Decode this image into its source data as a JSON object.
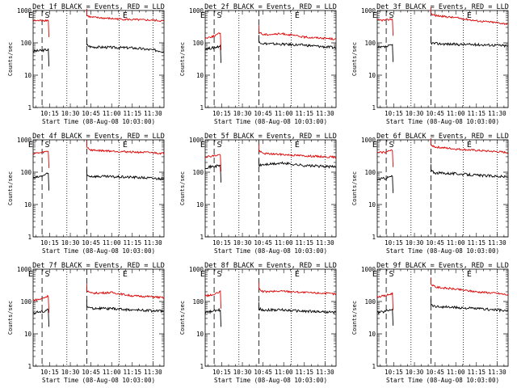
{
  "colors": {
    "events": "#000000",
    "lld": "#dd0000",
    "axes": "#000000",
    "background": "#ffffff"
  },
  "figure": {
    "ylabel": "Counts/sec",
    "xlabel": "Start Time (08-Aug-08 10:03:00)"
  },
  "chart_data": [
    {
      "type": "line",
      "title": "Det 1f BLACK = Events, RED = LLD",
      "xlabel": "Start Time (08-Aug-08 10:03:00)",
      "ylabel": "Counts/sec",
      "yscale": "log",
      "ylim": [
        1,
        1000
      ],
      "ytick_labels": [
        "1",
        "10",
        "100",
        "1000"
      ],
      "xtick_labels": [
        "10:15",
        "10:30",
        "10:45",
        "11:00",
        "11:15",
        "11:30"
      ],
      "markers": [
        "E",
        "S",
        "E"
      ],
      "series": [
        {
          "name": "Events",
          "color": "#000000",
          "segments": [
            {
              "x": [
                "10:03",
                "10:09",
                "10:14"
              ],
              "values": [
                55,
                58,
                62
              ]
            },
            {
              "x": [
                "10:42",
                "10:45",
                "11:00",
                "11:15",
                "11:30",
                "11:38"
              ],
              "values": [
                85,
                75,
                72,
                70,
                60,
                55
              ]
            }
          ]
        },
        {
          "name": "LLD",
          "color": "#dd0000",
          "segments": [
            {
              "x": [
                "10:03",
                "10:09",
                "10:14"
              ],
              "values": [
                480,
                490,
                500
              ]
            },
            {
              "x": [
                "10:42",
                "10:45",
                "11:00",
                "11:15",
                "11:30",
                "11:38"
              ],
              "values": [
                700,
                620,
                560,
                520,
                500,
                470
              ]
            }
          ]
        }
      ]
    },
    {
      "type": "line",
      "title": "Det 2f BLACK = Events, RED = LLD",
      "xlabel": "Start Time (08-Aug-08 10:03:00)",
      "ylabel": "Counts/sec",
      "yscale": "log",
      "ylim": [
        1,
        1000
      ],
      "ytick_labels": [
        "1",
        "10",
        "100",
        "1000"
      ],
      "xtick_labels": [
        "10:15",
        "10:30",
        "10:45",
        "11:00",
        "11:15",
        "11:30"
      ],
      "markers": [
        "E",
        "S",
        "E"
      ],
      "series": [
        {
          "name": "Events",
          "color": "#000000",
          "segments": [
            {
              "x": [
                "10:03",
                "10:09",
                "10:14"
              ],
              "values": [
                65,
                70,
                80
              ]
            },
            {
              "x": [
                "10:42",
                "10:45",
                "11:00",
                "11:15",
                "11:30",
                "11:38"
              ],
              "values": [
                110,
                95,
                90,
                85,
                75,
                70
              ]
            }
          ]
        },
        {
          "name": "LLD",
          "color": "#dd0000",
          "segments": [
            {
              "x": [
                "10:03",
                "10:09",
                "10:14"
              ],
              "values": [
                140,
                160,
                200
              ]
            },
            {
              "x": [
                "10:42",
                "10:45",
                "11:00",
                "11:15",
                "11:30",
                "11:38"
              ],
              "values": [
                220,
                180,
                190,
                150,
                140,
                130
              ]
            }
          ]
        }
      ]
    },
    {
      "type": "line",
      "title": "Det 3f BLACK = Events, RED = LLD",
      "xlabel": "Start Time (08-Aug-08 10:03:00)",
      "ylabel": "Counts/sec",
      "yscale": "log",
      "ylim": [
        1,
        1000
      ],
      "ytick_labels": [
        "1",
        "10",
        "100",
        "1000"
      ],
      "xtick_labels": [
        "10:15",
        "10:30",
        "10:45",
        "11:00",
        "11:15",
        "11:30"
      ],
      "markers": [
        "E",
        "S",
        "E"
      ],
      "series": [
        {
          "name": "Events",
          "color": "#000000",
          "segments": [
            {
              "x": [
                "10:03",
                "10:09",
                "10:14"
              ],
              "values": [
                70,
                75,
                85
              ]
            },
            {
              "x": [
                "10:42",
                "10:45",
                "11:00",
                "11:15",
                "11:30",
                "11:38"
              ],
              "values": [
                100,
                95,
                90,
                88,
                85,
                80
              ]
            }
          ]
        },
        {
          "name": "LLD",
          "color": "#dd0000",
          "segments": [
            {
              "x": [
                "10:03",
                "10:09",
                "10:14"
              ],
              "values": [
                500,
                500,
                550
              ]
            },
            {
              "x": [
                "10:42",
                "10:45",
                "11:00",
                "11:15",
                "11:30",
                "11:38"
              ],
              "values": [
                800,
                700,
                600,
                480,
                420,
                380
              ]
            }
          ]
        }
      ]
    },
    {
      "type": "line",
      "title": "Det 4f BLACK = Events, RED = LLD",
      "xlabel": "Start Time (08-Aug-08 10:03:00)",
      "ylabel": "Counts/sec",
      "yscale": "log",
      "ylim": [
        1,
        1000
      ],
      "ytick_labels": [
        "1",
        "10",
        "100",
        "1000"
      ],
      "xtick_labels": [
        "10:15",
        "10:30",
        "10:45",
        "11:00",
        "11:15",
        "11:30"
      ],
      "markers": [
        "E",
        "S",
        "E"
      ],
      "series": [
        {
          "name": "Events",
          "color": "#000000",
          "segments": [
            {
              "x": [
                "10:03",
                "10:09",
                "10:14"
              ],
              "values": [
                65,
                75,
                90
              ]
            },
            {
              "x": [
                "10:42",
                "10:45",
                "11:00",
                "11:15",
                "11:30",
                "11:38"
              ],
              "values": [
                80,
                75,
                72,
                70,
                65,
                62
              ]
            }
          ]
        },
        {
          "name": "LLD",
          "color": "#dd0000",
          "segments": [
            {
              "x": [
                "10:03",
                "10:09",
                "10:14"
              ],
              "values": [
                380,
                400,
                450
              ]
            },
            {
              "x": [
                "10:42",
                "10:45",
                "11:00",
                "11:15",
                "11:30",
                "11:38"
              ],
              "values": [
                600,
                480,
                450,
                420,
                400,
                380
              ]
            }
          ]
        }
      ]
    },
    {
      "type": "line",
      "title": "Det 5f BLACK = Events, RED = LLD",
      "xlabel": "Start Time (08-Aug-08 10:03:00)",
      "ylabel": "Counts/sec",
      "yscale": "log",
      "ylim": [
        1,
        1000
      ],
      "ytick_labels": [
        "1",
        "10",
        "100",
        "1000"
      ],
      "xtick_labels": [
        "10:15",
        "10:30",
        "10:45",
        "11:00",
        "11:15",
        "11:30"
      ],
      "markers": [
        "E",
        "S",
        "E"
      ],
      "series": [
        {
          "name": "Events",
          "color": "#000000",
          "segments": [
            {
              "x": [
                "10:03",
                "10:09",
                "10:14"
              ],
              "values": [
                140,
                150,
                160
              ]
            },
            {
              "x": [
                "10:42",
                "10:45",
                "11:00",
                "11:15",
                "11:30",
                "11:38"
              ],
              "values": [
                160,
                170,
                190,
                160,
                150,
                145
              ]
            }
          ]
        },
        {
          "name": "LLD",
          "color": "#dd0000",
          "segments": [
            {
              "x": [
                "10:03",
                "10:09",
                "10:14"
              ],
              "values": [
                300,
                320,
                350
              ]
            },
            {
              "x": [
                "10:42",
                "10:45",
                "11:00",
                "11:15",
                "11:30",
                "11:38"
              ],
              "values": [
                450,
                380,
                350,
                320,
                300,
                290
              ]
            }
          ]
        }
      ]
    },
    {
      "type": "line",
      "title": "Det 6f BLACK = Events, RED = LLD",
      "xlabel": "Start Time (08-Aug-08 10:03:00)",
      "ylabel": "Counts/sec",
      "yscale": "log",
      "ylim": [
        1,
        1000
      ],
      "ytick_labels": [
        "1",
        "10",
        "100",
        "1000"
      ],
      "xtick_labels": [
        "10:15",
        "10:30",
        "10:45",
        "11:00",
        "11:15",
        "11:30"
      ],
      "markers": [
        "E",
        "S",
        "E"
      ],
      "series": [
        {
          "name": "Events",
          "color": "#000000",
          "segments": [
            {
              "x": [
                "10:03",
                "10:09",
                "10:14"
              ],
              "values": [
                60,
                65,
                75
              ]
            },
            {
              "x": [
                "10:42",
                "10:45",
                "11:00",
                "11:15",
                "11:30",
                "11:38"
              ],
              "values": [
                110,
                95,
                90,
                80,
                75,
                70
              ]
            }
          ]
        },
        {
          "name": "LLD",
          "color": "#dd0000",
          "segments": [
            {
              "x": [
                "10:03",
                "10:09",
                "10:14"
              ],
              "values": [
                400,
                420,
                480
              ]
            },
            {
              "x": [
                "10:42",
                "10:45",
                "11:00",
                "11:15",
                "11:30",
                "11:38"
              ],
              "values": [
                700,
                600,
                520,
                470,
                430,
                400
              ]
            }
          ]
        }
      ]
    },
    {
      "type": "line",
      "title": "Det 7f BLACK = Events, RED = LLD",
      "xlabel": "Start Time (08-Aug-08 10:03:00)",
      "ylabel": "Counts/sec",
      "yscale": "log",
      "ylim": [
        1,
        1000
      ],
      "ytick_labels": [
        "1",
        "10",
        "100",
        "1000"
      ],
      "xtick_labels": [
        "10:15",
        "10:30",
        "10:45",
        "11:00",
        "11:15",
        "11:30"
      ],
      "markers": [
        "E",
        "S",
        "E"
      ],
      "series": [
        {
          "name": "Events",
          "color": "#000000",
          "segments": [
            {
              "x": [
                "10:03",
                "10:09",
                "10:14"
              ],
              "values": [
                45,
                48,
                55
              ]
            },
            {
              "x": [
                "10:42",
                "10:45",
                "11:00",
                "11:15",
                "11:30",
                "11:38"
              ],
              "values": [
                70,
                62,
                60,
                55,
                52,
                50
              ]
            }
          ]
        },
        {
          "name": "LLD",
          "color": "#dd0000",
          "segments": [
            {
              "x": [
                "10:03",
                "10:09",
                "10:14"
              ],
              "values": [
                110,
                120,
                150
              ]
            },
            {
              "x": [
                "10:42",
                "10:45",
                "11:00",
                "11:15",
                "11:30",
                "11:38"
              ],
              "values": [
                220,
                180,
                190,
                150,
                140,
                130
              ]
            }
          ]
        }
      ]
    },
    {
      "type": "line",
      "title": "Det 8f BLACK = Events, RED = LLD",
      "xlabel": "Start Time (08-Aug-08 10:03:00)",
      "ylabel": "Counts/sec",
      "yscale": "log",
      "ylim": [
        1,
        1000
      ],
      "ytick_labels": [
        "1",
        "10",
        "100",
        "1000"
      ],
      "xtick_labels": [
        "10:15",
        "10:30",
        "10:45",
        "11:00",
        "11:15",
        "11:30"
      ],
      "markers": [
        "E",
        "S",
        "E"
      ],
      "series": [
        {
          "name": "Events",
          "color": "#000000",
          "segments": [
            {
              "x": [
                "10:03",
                "10:09",
                "10:14"
              ],
              "values": [
                45,
                50,
                55
              ]
            },
            {
              "x": [
                "10:42",
                "10:45",
                "11:00",
                "11:15",
                "11:30",
                "11:38"
              ],
              "values": [
                60,
                55,
                55,
                50,
                48,
                45
              ]
            }
          ]
        },
        {
          "name": "LLD",
          "color": "#dd0000",
          "segments": [
            {
              "x": [
                "10:03",
                "10:09",
                "10:14"
              ],
              "values": [
                150,
                160,
                200
              ]
            },
            {
              "x": [
                "10:42",
                "10:45",
                "11:00",
                "11:15",
                "11:30",
                "11:38"
              ],
              "values": [
                250,
                200,
                210,
                190,
                180,
                170
              ]
            }
          ]
        }
      ]
    },
    {
      "type": "line",
      "title": "Det 9f BLACK = Events, RED = LLD",
      "xlabel": "Start Time (08-Aug-08 10:03:00)",
      "ylabel": "Counts/sec",
      "yscale": "log",
      "ylim": [
        1,
        1000
      ],
      "ytick_labels": [
        "1",
        "10",
        "100",
        "1000"
      ],
      "xtick_labels": [
        "10:15",
        "10:30",
        "10:45",
        "11:00",
        "11:15",
        "11:30"
      ],
      "markers": [
        "E",
        "S",
        "E"
      ],
      "series": [
        {
          "name": "Events",
          "color": "#000000",
          "segments": [
            {
              "x": [
                "10:03",
                "10:09",
                "10:14"
              ],
              "values": [
                45,
                50,
                60
              ]
            },
            {
              "x": [
                "10:42",
                "10:45",
                "11:00",
                "11:15",
                "11:30",
                "11:38"
              ],
              "values": [
                80,
                70,
                65,
                60,
                55,
                50
              ]
            }
          ]
        },
        {
          "name": "LLD",
          "color": "#dd0000",
          "segments": [
            {
              "x": [
                "10:03",
                "10:09",
                "10:14"
              ],
              "values": [
                140,
                150,
                180
              ]
            },
            {
              "x": [
                "10:42",
                "10:45",
                "11:00",
                "11:15",
                "11:30",
                "11:38"
              ],
              "values": [
                350,
                280,
                240,
                200,
                180,
                160
              ]
            }
          ]
        }
      ]
    }
  ]
}
